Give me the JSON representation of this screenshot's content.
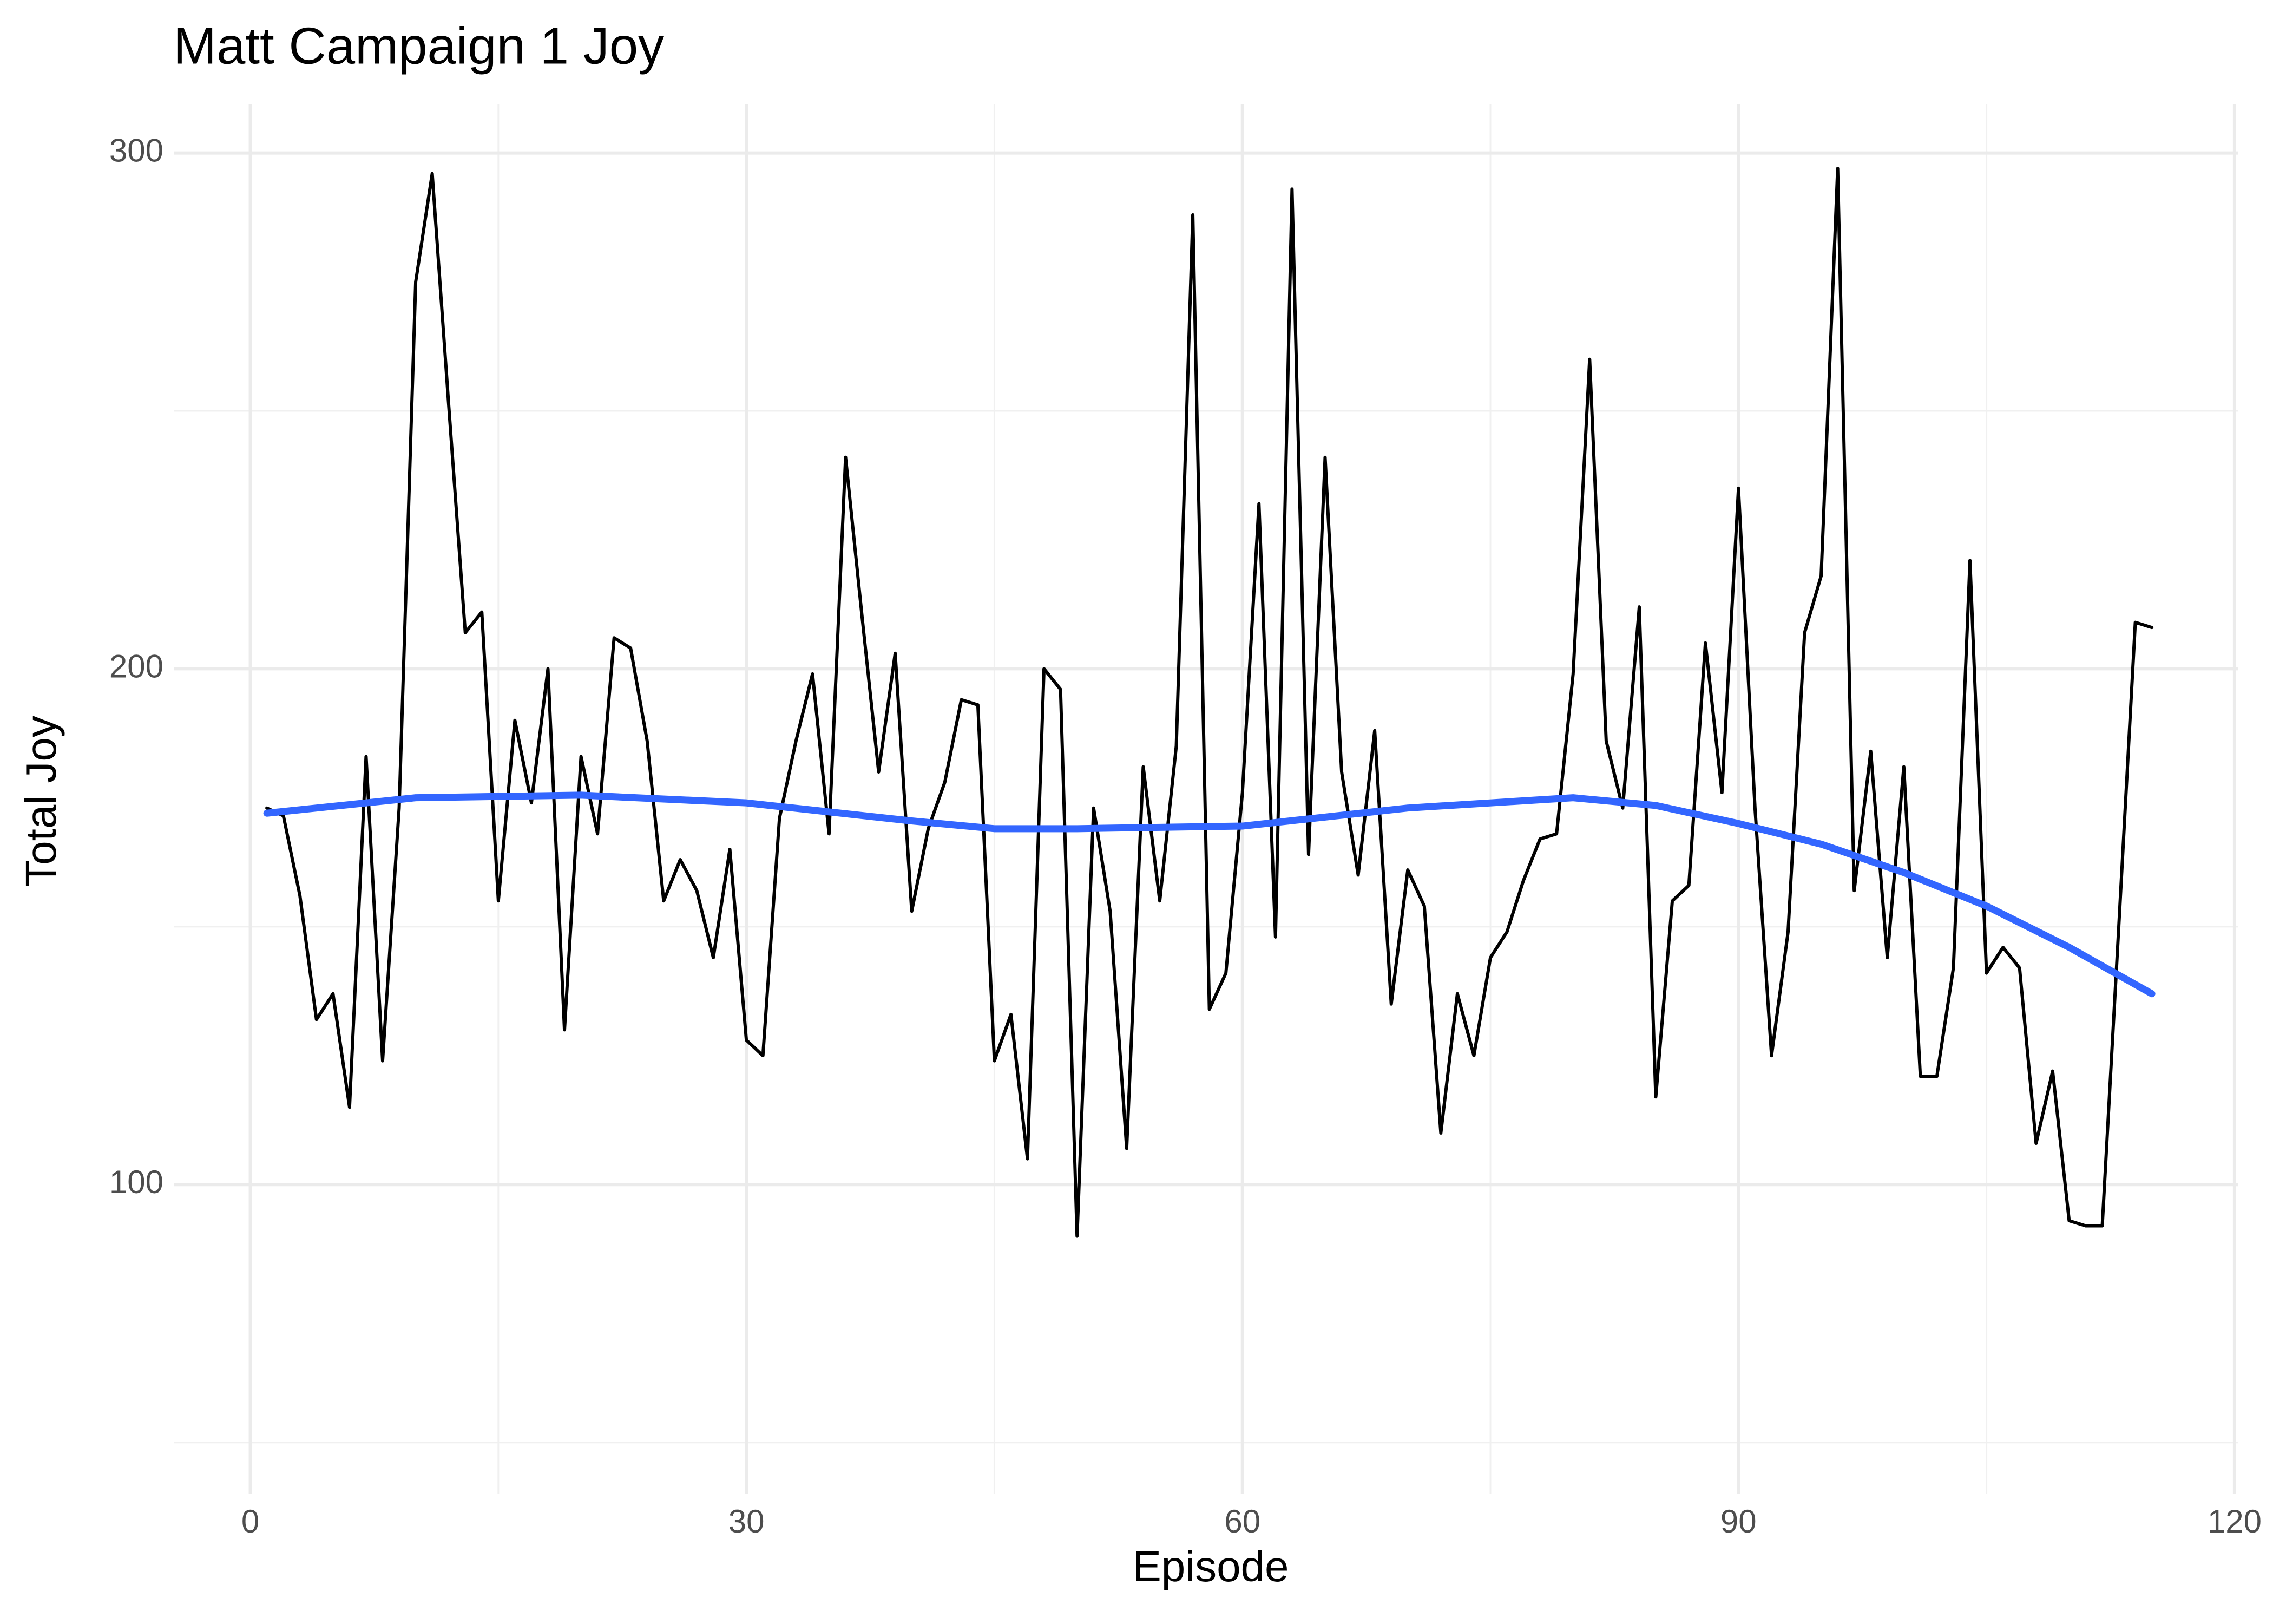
{
  "chart_data": {
    "type": "line",
    "title": "Matt Campaign 1 Joy",
    "x_label": "Episode",
    "y_label": "Total Joy",
    "xlim": [
      -4.6,
      120.2
    ],
    "ylim": [
      40,
      309.4
    ],
    "xticks": [
      0,
      30,
      60,
      90,
      120
    ],
    "yticks": [
      100,
      200,
      300
    ],
    "x_minor_ticks": [
      15,
      45,
      75,
      105
    ],
    "y_minor_ticks": [
      50,
      150,
      250
    ],
    "grid": true,
    "series": [
      {
        "color": "#000000",
        "x": [
          1,
          2,
          3,
          4,
          5,
          6,
          7,
          8,
          9,
          10,
          11,
          12,
          13,
          14,
          15,
          16,
          17,
          18,
          19,
          20,
          21,
          22,
          23,
          24,
          25,
          26,
          27,
          28,
          29,
          30,
          31,
          32,
          33,
          34,
          35,
          36,
          37,
          38,
          39,
          40,
          41,
          42,
          43,
          44,
          45,
          46,
          47,
          48,
          49,
          50,
          51,
          52,
          53,
          54,
          55,
          56,
          57,
          58,
          59,
          60,
          61,
          62,
          63,
          64,
          65,
          66,
          67,
          68,
          69,
          70,
          71,
          72,
          73,
          74,
          75,
          76,
          77,
          78,
          79,
          80,
          81,
          82,
          83,
          84,
          85,
          86,
          87,
          88,
          89,
          90,
          91,
          92,
          93,
          94,
          95,
          96,
          97,
          98,
          99,
          100,
          101,
          102,
          103,
          104,
          105,
          106,
          107,
          108,
          109,
          110,
          111,
          112,
          113,
          114,
          115
        ],
        "values": [
          173,
          171.5,
          156,
          132,
          137,
          115,
          183,
          124,
          173,
          275,
          296,
          251,
          207,
          211,
          155,
          190,
          174,
          200,
          130,
          183,
          168,
          206,
          204,
          186,
          155,
          163,
          157,
          144,
          165,
          128,
          125,
          171,
          186,
          199,
          168,
          241,
          210,
          180,
          203,
          153,
          169,
          178,
          194,
          193,
          124,
          133,
          105,
          200,
          196,
          90,
          173,
          153,
          107,
          181,
          155,
          185,
          288,
          134,
          141,
          176,
          232,
          148,
          293,
          164,
          241,
          180,
          160,
          188,
          135,
          161,
          154,
          110,
          137,
          125,
          144,
          149,
          159,
          167,
          168,
          199,
          260,
          186,
          173,
          212,
          117,
          155,
          158,
          205,
          176,
          235,
          173,
          125,
          149,
          207,
          218,
          297,
          157,
          184,
          144,
          181,
          121,
          121,
          142,
          221,
          141,
          146,
          142,
          108,
          122,
          93,
          92,
          92,
          150,
          209,
          208
        ]
      },
      {
        "color": "#3366FF",
        "x": [
          1,
          10,
          20,
          30,
          40,
          45,
          50,
          60,
          70,
          80,
          85,
          90,
          95,
          100,
          105,
          110,
          115
        ],
        "values": [
          172,
          175,
          175.5,
          174,
          170.5,
          169,
          169,
          169.5,
          173,
          175,
          173.5,
          170,
          166,
          160.5,
          154,
          146,
          137
        ]
      }
    ]
  }
}
